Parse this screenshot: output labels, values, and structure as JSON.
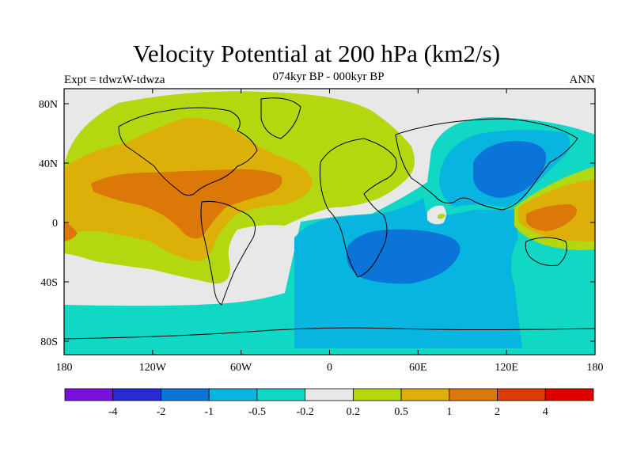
{
  "title": "Velocity Potential at 200 hPa (km2/s)",
  "subtitle": "074kyr BP - 000kyr BP",
  "left_label": "Expt = tdwzW-tdwza",
  "right_label": "ANN",
  "axes": {
    "lon_ticks": [
      "180",
      "120W",
      "60W",
      "0",
      "60E",
      "120E",
      "180"
    ],
    "lat_ticks": [
      "80N",
      "40N",
      "0",
      "40S",
      "80S"
    ]
  },
  "colorbar": {
    "colors": [
      "#7a10dc",
      "#2a2ad2",
      "#0a74d8",
      "#08b4e0",
      "#10d8c4",
      "#e8e8e8",
      "#b4d810",
      "#dcb008",
      "#dc7808",
      "#dc3c08",
      "#e00000"
    ],
    "labels": [
      "-4",
      "-2",
      "-1",
      "-0.5",
      "-0.2",
      "0.2",
      "0.5",
      "1",
      "2",
      "4"
    ]
  }
}
